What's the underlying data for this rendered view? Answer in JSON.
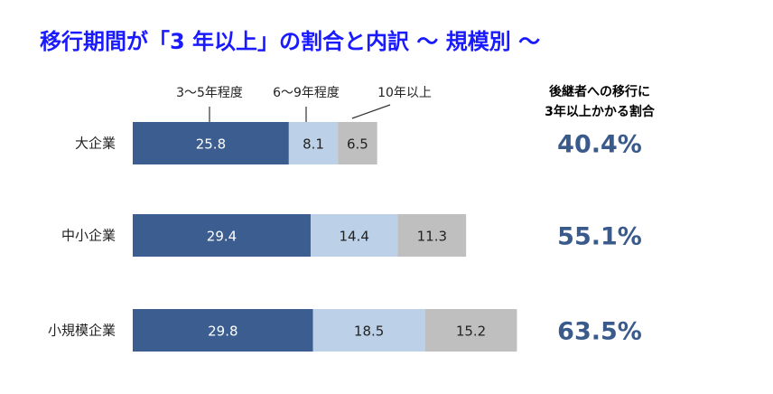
{
  "title": "移行期間が「3 年以上」の割合と内訳 ～ 規模別 ～",
  "colors": {
    "title": "#1a1aff",
    "accent": "#3a5a8c",
    "series": [
      "#3b5d8f",
      "#bcd0e8",
      "#bfbfbf"
    ]
  },
  "chart_data": {
    "type": "bar",
    "orientation": "horizontal",
    "stacked": true,
    "categories": [
      "大企業",
      "中小企業",
      "小規模企業"
    ],
    "series": [
      {
        "name": "3～5年程度",
        "values": [
          25.8,
          29.4,
          29.8
        ]
      },
      {
        "name": "6～9年程度",
        "values": [
          8.1,
          14.4,
          18.5
        ]
      },
      {
        "name": "10年以上",
        "values": [
          6.5,
          11.3,
          15.2
        ]
      }
    ],
    "xlim": [
      0,
      63.5
    ],
    "grid": false,
    "legend": "callout labels above first bar"
  },
  "side": {
    "heading_line1": "後継者への移行に",
    "heading_line2": "3年以上かかる割合",
    "values": [
      "40.4%",
      "55.1%",
      "63.5%"
    ]
  }
}
